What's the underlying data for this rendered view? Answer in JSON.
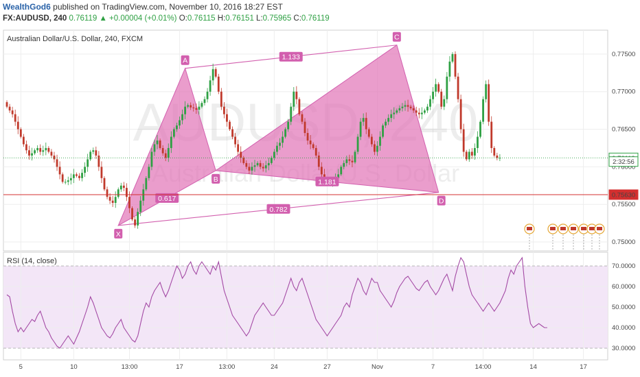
{
  "header": {
    "author": "WealthGod6",
    "published_text": "published on TradingView.com, November 10, 2016 18:27 EST",
    "symbol": "FX:AUDUSD, 240",
    "last": "0.76119",
    "change": "+0.00004 (+0.01%)",
    "o_label": "O:",
    "o": "0.76115",
    "h_label": "H:",
    "h": "0.76151",
    "l_label": "L:",
    "l": "0.75965",
    "c_label": "C:",
    "c": "0.76119"
  },
  "colors": {
    "up": "#2ea043",
    "down": "#c0392b",
    "pattern_fill": "#e277b8",
    "pattern_line": "#d25fae",
    "rsi_line": "#a349a4",
    "rsi_band": "#f3e6f7",
    "level_red": "#d32f2f"
  },
  "chart_data": [
    {
      "type": "candlestick",
      "title": "Australian Dollar/U.S. Dollar, 240, FXCM",
      "watermark_symbol": "AUDUSD, 240",
      "watermark_name": "Australian Dollar/U.S. Dollar",
      "ylim": [
        0.749,
        0.778
      ],
      "y_ticks": [
        "0.77500",
        "0.77000",
        "0.76500",
        "0.76000",
        "0.75500",
        "0.75000"
      ],
      "y_tick_values": [
        0.775,
        0.77,
        0.765,
        0.76,
        0.755,
        0.75
      ],
      "x_ticks": [
        "5",
        "10",
        "13:00",
        "17",
        "13:00",
        "24",
        "27",
        "Nov",
        "7",
        "14:00",
        "14",
        "17"
      ],
      "x_tick_index": [
        5,
        24,
        44,
        62,
        79,
        96,
        115,
        133,
        153,
        171,
        189,
        207
      ],
      "n_slots": 215,
      "closes": [
        0.768,
        0.7675,
        0.767,
        0.766,
        0.765,
        0.764,
        0.763,
        0.7622,
        0.7615,
        0.7618,
        0.7622,
        0.7625,
        0.762,
        0.7622,
        0.7625,
        0.762,
        0.7615,
        0.761,
        0.76,
        0.759,
        0.758,
        0.758,
        0.7582,
        0.7585,
        0.759,
        0.7588,
        0.7585,
        0.7592,
        0.76,
        0.761,
        0.762,
        0.7622,
        0.7615,
        0.76,
        0.7585,
        0.757,
        0.756,
        0.7555,
        0.7552,
        0.756,
        0.757,
        0.7575,
        0.7572,
        0.756,
        0.7545,
        0.753,
        0.7522,
        0.754,
        0.7555,
        0.757,
        0.7585,
        0.76,
        0.762,
        0.763,
        0.7635,
        0.7625,
        0.7618,
        0.7612,
        0.7625,
        0.764,
        0.765,
        0.7655,
        0.7662,
        0.767,
        0.768,
        0.7682,
        0.7679,
        0.7678,
        0.7676,
        0.768,
        0.7685,
        0.769,
        0.77,
        0.7715,
        0.773,
        0.772,
        0.77,
        0.768,
        0.767,
        0.766,
        0.765,
        0.764,
        0.763,
        0.762,
        0.7612,
        0.7605,
        0.76,
        0.7595,
        0.76,
        0.7602,
        0.7605,
        0.76,
        0.7598,
        0.7602,
        0.7605,
        0.7612,
        0.762,
        0.7628,
        0.7632,
        0.764,
        0.765,
        0.766,
        0.768,
        0.77,
        0.769,
        0.767,
        0.766,
        0.7645,
        0.7635,
        0.763,
        0.7625,
        0.7615,
        0.76,
        0.759,
        0.7582,
        0.758,
        0.7578,
        0.758,
        0.7585,
        0.759,
        0.76,
        0.7605,
        0.761,
        0.7608,
        0.7606,
        0.762,
        0.764,
        0.766,
        0.7665,
        0.765,
        0.764,
        0.763,
        0.762,
        0.7628,
        0.764,
        0.7655,
        0.766,
        0.7665,
        0.767,
        0.7672,
        0.7675,
        0.7678,
        0.768,
        0.7682,
        0.768,
        0.7678,
        0.7675,
        0.7672,
        0.767,
        0.7672,
        0.7675,
        0.768,
        0.769,
        0.77,
        0.771,
        0.77,
        0.768,
        0.769,
        0.772,
        0.774,
        0.775,
        0.772,
        0.769,
        0.765,
        0.762,
        0.761,
        0.762,
        0.7615,
        0.7625,
        0.764,
        0.766,
        0.769,
        0.771,
        0.766,
        0.7625,
        0.7615,
        0.7612,
        0.7612
      ],
      "points": [
        {
          "name": "X",
          "index": 40,
          "price": 0.7522
        },
        {
          "name": "A",
          "index": 64,
          "price": 0.7731
        },
        {
          "name": "B",
          "index": 75,
          "price": 0.7595
        },
        {
          "name": "C",
          "index": 140,
          "price": 0.7762
        },
        {
          "name": "D",
          "index": 155,
          "price": 0.7566
        }
      ],
      "ratios": [
        {
          "label": "1.133",
          "between": [
            "A",
            "C"
          ]
        },
        {
          "label": "0.617",
          "between": [
            "X",
            "B"
          ]
        },
        {
          "label": "1.181",
          "between": [
            "B",
            "D"
          ]
        },
        {
          "label": "0.782",
          "between": [
            "X",
            "D"
          ]
        }
      ],
      "price_badges": [
        {
          "label": "0.76119",
          "price": 0.76119,
          "style": "last"
        },
        {
          "label": "2:32:56",
          "price": 0.7607,
          "style": "timer"
        },
        {
          "label": "0.75630",
          "price": 0.7563,
          "style": "level"
        }
      ],
      "horizontal_level": 0.7563
    },
    {
      "type": "line",
      "title": "RSI (14, close)",
      "ylim": [
        25,
        76
      ],
      "y_ticks": [
        "70.0000",
        "60.0000",
        "50.0000",
        "40.0000",
        "30.0000"
      ],
      "y_tick_values": [
        70,
        60,
        50,
        40,
        30
      ],
      "band": [
        30,
        70
      ],
      "values": [
        56,
        55,
        48,
        42,
        38,
        40,
        38,
        40,
        42,
        44,
        43,
        46,
        48,
        44,
        40,
        38,
        35,
        33,
        31,
        30,
        32,
        34,
        36,
        34,
        32,
        35,
        38,
        42,
        46,
        50,
        55,
        52,
        48,
        44,
        40,
        38,
        36,
        35,
        37,
        40,
        42,
        44,
        40,
        38,
        36,
        34,
        33,
        36,
        42,
        48,
        52,
        50,
        55,
        58,
        60,
        62,
        58,
        55,
        58,
        62,
        66,
        70,
        68,
        64,
        66,
        70,
        72,
        68,
        66,
        70,
        72,
        70,
        68,
        66,
        70,
        68,
        72,
        65,
        58,
        54,
        50,
        46,
        44,
        42,
        40,
        38,
        36,
        38,
        42,
        46,
        48,
        50,
        52,
        50,
        48,
        46,
        46,
        48,
        50,
        52,
        56,
        60,
        64,
        60,
        58,
        62,
        64,
        60,
        56,
        52,
        48,
        44,
        42,
        40,
        38,
        36,
        38,
        40,
        42,
        44,
        46,
        50,
        52,
        50,
        56,
        60,
        64,
        62,
        58,
        56,
        60,
        64,
        62,
        62,
        58,
        56,
        54,
        52,
        50,
        53,
        57,
        60,
        62,
        64,
        65,
        63,
        61,
        59,
        58,
        60,
        62,
        63,
        60,
        58,
        56,
        58,
        61,
        64,
        66,
        62,
        58,
        65,
        70,
        74,
        72,
        66,
        60,
        56,
        54,
        52,
        50,
        48,
        50,
        52,
        50,
        48,
        50,
        52,
        55,
        58,
        64,
        68,
        66,
        70,
        72,
        74,
        60,
        50,
        42,
        40,
        41,
        42,
        41,
        40,
        40
      ]
    }
  ]
}
